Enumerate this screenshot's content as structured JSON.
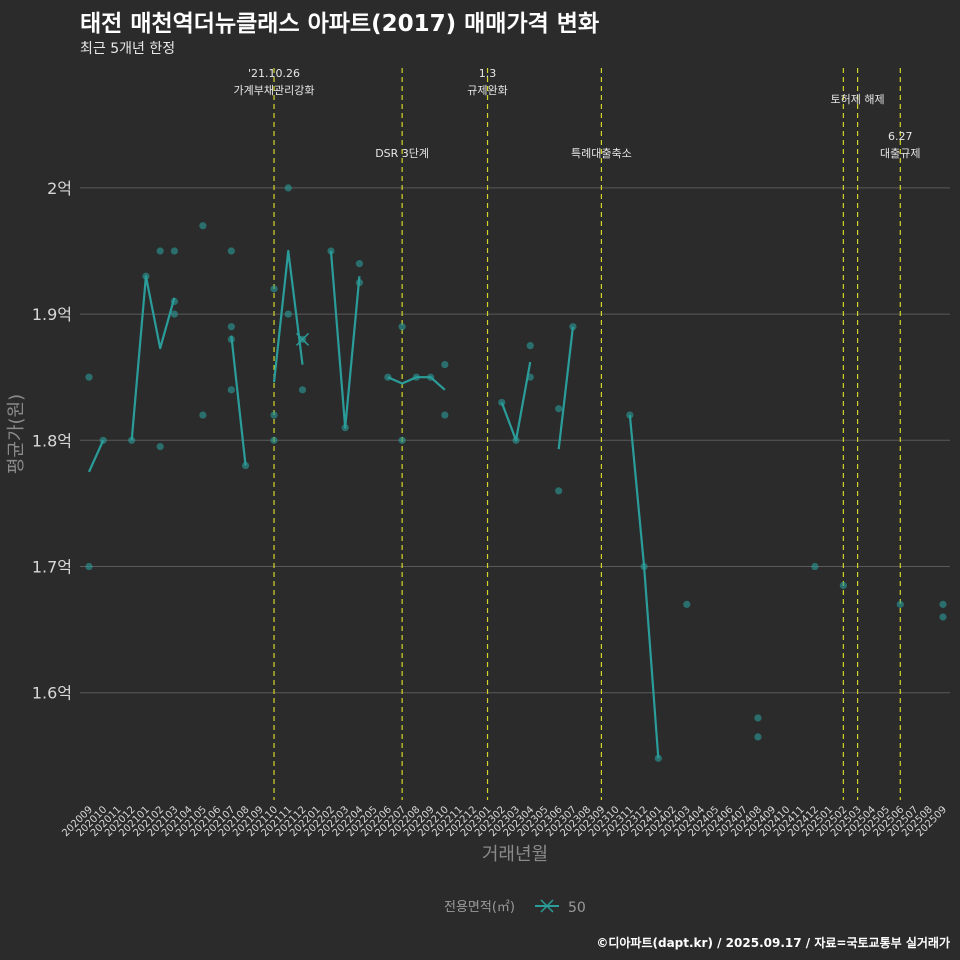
{
  "header": {
    "title": "태전 매천역더뉴클래스 아파트(2017) 매매가격 변화",
    "subtitle": "최근 5개년 한정",
    "caption": "©디아파트(dapt.kr) / 2025.09.17 / 자료=국토교통부 실거래가"
  },
  "colors": {
    "series": "#2a9d9a",
    "event_line": "#d4d42a",
    "grid": "#5a5a5a"
  },
  "chart_data": {
    "type": "scatter+line",
    "title": "태전 매천역더뉴클래스 아파트(2017) 매매가격 변화",
    "xlabel": "거래년월",
    "ylabel": "평균가(원)",
    "ylim": [
      1.515,
      2.095
    ],
    "y_ticks": [
      1.6,
      1.7,
      1.8,
      1.9,
      2.0
    ],
    "y_tick_labels": [
      "1.6억",
      "1.7억",
      "1.8억",
      "1.9억",
      "2억"
    ],
    "categories": [
      "202009",
      "202010",
      "202011",
      "202012",
      "202101",
      "202102",
      "202103",
      "202104",
      "202105",
      "202106",
      "202107",
      "202108",
      "202109",
      "202110",
      "202111",
      "202112",
      "202201",
      "202202",
      "202203",
      "202204",
      "202205",
      "202206",
      "202207",
      "202208",
      "202209",
      "202210",
      "202211",
      "202212",
      "202301",
      "202302",
      "202303",
      "202304",
      "202305",
      "202306",
      "202307",
      "202308",
      "202309",
      "202310",
      "202311",
      "202312",
      "202401",
      "202402",
      "202403",
      "202404",
      "202405",
      "202406",
      "202407",
      "202408",
      "202409",
      "202410",
      "202411",
      "202412",
      "202501",
      "202502",
      "202503",
      "202504",
      "202505",
      "202506",
      "202507",
      "202508",
      "202509"
    ],
    "legend": {
      "title": "전용면적(㎡)",
      "items": [
        "50"
      ]
    },
    "events": [
      {
        "x": 13,
        "label": "'21.10.26\n가계부채관리강화",
        "row": "top"
      },
      {
        "x": 22,
        "label": "DSR 3단계",
        "row": "low"
      },
      {
        "x": 28,
        "label": "1.3\n규제완화",
        "row": "top"
      },
      {
        "x": 36,
        "label": "특례대출축소",
        "row": "low"
      },
      {
        "x": 53,
        "label": "",
        "row": "top"
      },
      {
        "x": 54,
        "label": "토허제 해제",
        "row": "mid"
      },
      {
        "x": 57,
        "label": "6.27\n대출규제",
        "row": "low"
      }
    ],
    "points": [
      [
        0,
        1.85
      ],
      [
        0,
        1.7
      ],
      [
        1,
        1.8
      ],
      [
        3,
        1.8
      ],
      [
        4,
        1.93
      ],
      [
        5,
        1.95
      ],
      [
        5,
        1.795
      ],
      [
        6,
        1.95
      ],
      [
        6,
        1.9
      ],
      [
        6,
        1.91
      ],
      [
        8,
        1.97
      ],
      [
        8,
        1.82
      ],
      [
        10,
        1.95
      ],
      [
        10,
        1.89
      ],
      [
        10,
        1.88
      ],
      [
        10,
        1.84
      ],
      [
        11,
        1.78
      ],
      [
        13,
        1.92
      ],
      [
        13,
        1.82
      ],
      [
        13,
        1.8
      ],
      [
        14,
        2.0
      ],
      [
        14,
        1.9
      ],
      [
        15,
        1.88
      ],
      [
        15,
        1.84
      ],
      [
        17,
        1.95
      ],
      [
        18,
        1.81
      ],
      [
        19,
        1.94
      ],
      [
        19,
        1.925
      ],
      [
        21,
        1.85
      ],
      [
        22,
        1.89
      ],
      [
        22,
        1.8
      ],
      [
        23,
        1.85
      ],
      [
        24,
        1.85
      ],
      [
        25,
        1.86
      ],
      [
        25,
        1.82
      ],
      [
        29,
        1.83
      ],
      [
        30,
        1.8
      ],
      [
        31,
        1.875
      ],
      [
        31,
        1.85
      ],
      [
        33,
        1.825
      ],
      [
        33,
        1.76
      ],
      [
        34,
        1.89
      ],
      [
        38,
        1.82
      ],
      [
        39,
        1.7
      ],
      [
        40,
        1.548
      ],
      [
        42,
        1.67
      ],
      [
        47,
        1.58
      ],
      [
        47,
        1.565
      ],
      [
        51,
        1.7
      ],
      [
        53,
        1.685
      ],
      [
        57,
        1.67
      ],
      [
        60,
        1.67
      ],
      [
        60,
        1.66
      ]
    ],
    "series": [
      {
        "name": "50",
        "segments": [
          [
            [
              0,
              1.775
            ],
            [
              1,
              1.8
            ]
          ],
          [
            [
              3,
              1.8
            ],
            [
              4,
              1.93
            ],
            [
              5,
              1.873
            ],
            [
              6,
              1.913
            ]
          ],
          [
            [
              10,
              1.883
            ],
            [
              11,
              1.78
            ]
          ],
          [
            [
              13,
              1.846
            ],
            [
              14,
              1.95
            ],
            [
              15,
              1.86
            ]
          ],
          [
            [
              17,
              1.95
            ],
            [
              18,
              1.81
            ],
            [
              19,
              1.93
            ]
          ],
          [
            [
              21,
              1.85
            ],
            [
              22,
              1.845
            ],
            [
              23,
              1.85
            ],
            [
              24,
              1.85
            ],
            [
              25,
              1.84
            ]
          ],
          [
            [
              29,
              1.83
            ],
            [
              30,
              1.8
            ],
            [
              31,
              1.862
            ]
          ],
          [
            [
              33,
              1.793
            ],
            [
              34,
              1.89
            ]
          ],
          [
            [
              38,
              1.82
            ],
            [
              39,
              1.7
            ],
            [
              40,
              1.548
            ]
          ]
        ]
      }
    ],
    "cross_marker": [
      15,
      1.88
    ]
  }
}
